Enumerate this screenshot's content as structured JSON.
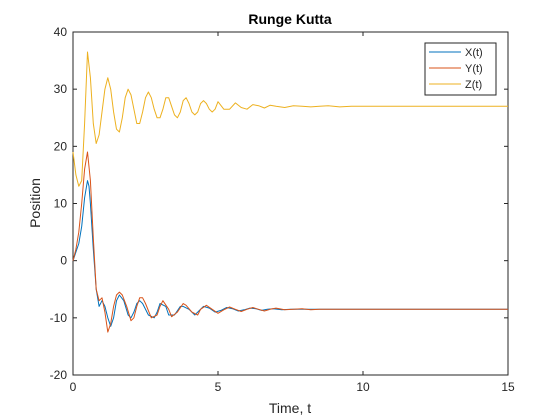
{
  "chart_data": {
    "type": "line",
    "title": "Runge Kutta",
    "xlabel": "Time, t",
    "ylabel": "Position",
    "xlim": [
      0,
      15
    ],
    "ylim": [
      -20,
      40
    ],
    "xticks": [
      "0",
      "5",
      "10",
      "15"
    ],
    "yticks": [
      "-20",
      "-10",
      "0",
      "10",
      "20",
      "30",
      "40"
    ],
    "grid": false,
    "legend_position": "top-right",
    "series": [
      {
        "name": "X(t)",
        "color": "#0072BD",
        "x": [
          0,
          0.1,
          0.2,
          0.3,
          0.4,
          0.5,
          0.55,
          0.6,
          0.7,
          0.8,
          0.9,
          1.0,
          1.1,
          1.2,
          1.3,
          1.4,
          1.5,
          1.6,
          1.75,
          1.9,
          2.0,
          2.1,
          2.2,
          2.3,
          2.4,
          2.6,
          2.8,
          2.9,
          3.0,
          3.2,
          3.3,
          3.5,
          3.7,
          3.8,
          4.0,
          4.2,
          4.3,
          4.5,
          4.7,
          4.9,
          5.1,
          5.3,
          5.5,
          5.7,
          5.9,
          6.1,
          6.3,
          6.5,
          6.7,
          6.9,
          7.2,
          7.5,
          7.8,
          8.1,
          8.4,
          8.7,
          9.0,
          9.5,
          10.0,
          10.5,
          11.0,
          11.5,
          12.0,
          13.0,
          14.0,
          15.0
        ],
        "y": [
          0,
          1.5,
          3,
          6,
          11,
          14,
          13,
          10,
          2,
          -5,
          -8,
          -7,
          -8,
          -10,
          -11.5,
          -10,
          -7,
          -6,
          -7,
          -9.5,
          -10,
          -9,
          -7.5,
          -7,
          -7.5,
          -9.5,
          -10,
          -9,
          -7.5,
          -8,
          -9.5,
          -9.5,
          -8,
          -8,
          -8.5,
          -9.5,
          -9,
          -8,
          -8.3,
          -9,
          -8.7,
          -8.2,
          -8.4,
          -8.8,
          -8.6,
          -8.3,
          -8.4,
          -8.7,
          -8.5,
          -8.4,
          -8.6,
          -8.5,
          -8.5,
          -8.5,
          -8.5,
          -8.5,
          -8.5,
          -8.5,
          -8.5,
          -8.5,
          -8.5,
          -8.5,
          -8.5,
          -8.5,
          -8.5,
          -8.5
        ]
      },
      {
        "name": "Y(t)",
        "color": "#D95319",
        "x": [
          0,
          0.1,
          0.2,
          0.3,
          0.4,
          0.5,
          0.6,
          0.7,
          0.8,
          0.9,
          1.0,
          1.1,
          1.2,
          1.3,
          1.4,
          1.5,
          1.6,
          1.7,
          1.85,
          2.0,
          2.1,
          2.2,
          2.3,
          2.4,
          2.5,
          2.7,
          2.9,
          3.0,
          3.1,
          3.3,
          3.4,
          3.6,
          3.8,
          3.9,
          4.1,
          4.3,
          4.4,
          4.6,
          4.8,
          5.0,
          5.2,
          5.4,
          5.6,
          5.8,
          6.0,
          6.2,
          6.4,
          6.6,
          6.8,
          7.0,
          7.3,
          7.6,
          7.9,
          8.2,
          8.5,
          8.8,
          9.2,
          9.6,
          10.0,
          10.5,
          11.0,
          11.5,
          12.0,
          13.0,
          14.0,
          15.0
        ],
        "y": [
          0,
          2,
          5,
          10,
          16,
          19,
          14,
          4,
          -5,
          -7,
          -6.5,
          -9,
          -12.5,
          -11,
          -8,
          -6,
          -5.5,
          -6,
          -8,
          -10.5,
          -10,
          -8,
          -6.5,
          -6.5,
          -7.5,
          -10,
          -9.5,
          -8,
          -7,
          -8.5,
          -9.8,
          -9,
          -7.5,
          -7.8,
          -9,
          -9.5,
          -8.5,
          -7.8,
          -8.5,
          -9.2,
          -8.6,
          -8.1,
          -8.5,
          -8.9,
          -8.5,
          -8.2,
          -8.5,
          -8.8,
          -8.5,
          -8.3,
          -8.6,
          -8.5,
          -8.4,
          -8.6,
          -8.5,
          -8.5,
          -8.5,
          -8.5,
          -8.5,
          -8.5,
          -8.5,
          -8.5,
          -8.5,
          -8.5,
          -8.5,
          -8.5
        ]
      },
      {
        "name": "Z(t)",
        "color": "#EDB120",
        "x": [
          0,
          0.1,
          0.2,
          0.3,
          0.4,
          0.5,
          0.6,
          0.7,
          0.8,
          0.9,
          1.0,
          1.1,
          1.2,
          1.3,
          1.4,
          1.5,
          1.6,
          1.7,
          1.8,
          1.9,
          2.0,
          2.1,
          2.2,
          2.3,
          2.4,
          2.5,
          2.6,
          2.7,
          2.8,
          2.9,
          3.0,
          3.1,
          3.2,
          3.3,
          3.4,
          3.5,
          3.6,
          3.7,
          3.8,
          3.9,
          4.0,
          4.1,
          4.2,
          4.3,
          4.4,
          4.5,
          4.6,
          4.7,
          4.8,
          4.9,
          5.0,
          5.2,
          5.4,
          5.6,
          5.8,
          6.0,
          6.2,
          6.4,
          6.6,
          6.8,
          7.0,
          7.3,
          7.6,
          7.9,
          8.2,
          8.5,
          8.8,
          9.2,
          9.6,
          10.0,
          10.5,
          11.0,
          12.0,
          13.0,
          14.0,
          15.0
        ],
        "y": [
          19,
          15,
          13,
          14,
          24,
          36.5,
          32,
          24,
          20.5,
          22,
          26,
          30,
          32,
          30,
          26,
          23,
          22.5,
          25,
          28.5,
          30,
          29,
          26.5,
          24,
          24,
          26,
          28.5,
          29.5,
          28.5,
          26.5,
          25,
          25,
          26.5,
          28.5,
          28.5,
          27,
          25.5,
          25,
          26,
          28,
          28.5,
          27.5,
          26,
          25.5,
          26,
          27.5,
          28,
          27.5,
          26.5,
          26,
          26.5,
          27.8,
          26.5,
          26.5,
          27.6,
          26.8,
          26.5,
          27.3,
          27.1,
          26.7,
          27.2,
          27,
          26.8,
          27.1,
          27,
          26.9,
          27,
          27.1,
          26.9,
          27,
          27,
          27,
          27,
          27,
          27,
          27,
          27
        ]
      }
    ]
  }
}
